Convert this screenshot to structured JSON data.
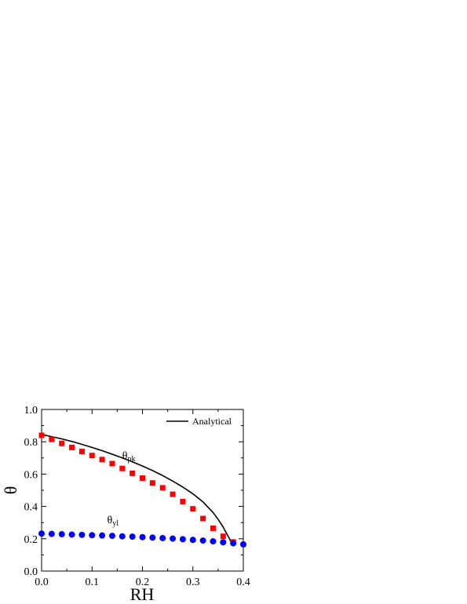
{
  "chart_data": {
    "type": "scatter",
    "xlabel": "RH",
    "ylabel": "θ",
    "xlim": [
      0.0,
      0.4
    ],
    "ylim": [
      0.0,
      1.0
    ],
    "x_ticks": [
      0.0,
      0.1,
      0.2,
      0.3,
      0.4
    ],
    "x_tick_labels": [
      "0.0",
      "0.1",
      "0.2",
      "0.3",
      "0.4"
    ],
    "y_ticks": [
      0.0,
      0.2,
      0.4,
      0.6,
      0.8,
      1.0
    ],
    "y_tick_labels": [
      "0.0",
      "0.2",
      "0.4",
      "0.6",
      "0.8",
      "1.0"
    ],
    "grid": false,
    "legend": {
      "placement": "top-right",
      "entries": [
        "Analytical"
      ]
    },
    "annotations": [
      {
        "base": "θ",
        "sub": "pk",
        "x": 0.16,
        "y": 0.695
      },
      {
        "base": "θ",
        "sub": "yl",
        "x": 0.13,
        "y": 0.295
      }
    ],
    "series": [
      {
        "name": "Analytical",
        "kind": "line",
        "color": "#000000",
        "x": [
          0.0,
          0.02,
          0.04,
          0.06,
          0.08,
          0.1,
          0.12,
          0.14,
          0.16,
          0.18,
          0.2,
          0.22,
          0.24,
          0.26,
          0.28,
          0.3,
          0.32,
          0.34,
          0.35,
          0.36,
          0.37,
          0.375,
          0.38
        ],
        "y": [
          0.845,
          0.832,
          0.818,
          0.802,
          0.784,
          0.765,
          0.745,
          0.723,
          0.7,
          0.676,
          0.65,
          0.622,
          0.591,
          0.557,
          0.52,
          0.478,
          0.428,
          0.362,
          0.32,
          0.272,
          0.215,
          0.185,
          0.165
        ]
      },
      {
        "kind": "scatter",
        "marker": "square",
        "color": "#ff0000",
        "x": [
          0.0,
          0.02,
          0.04,
          0.06,
          0.08,
          0.1,
          0.12,
          0.14,
          0.16,
          0.18,
          0.2,
          0.22,
          0.24,
          0.26,
          0.28,
          0.3,
          0.32,
          0.34,
          0.36,
          0.38
        ],
        "y": [
          0.84,
          0.815,
          0.79,
          0.765,
          0.74,
          0.715,
          0.69,
          0.665,
          0.635,
          0.605,
          0.575,
          0.545,
          0.515,
          0.475,
          0.43,
          0.385,
          0.325,
          0.265,
          0.215,
          0.18
        ]
      },
      {
        "kind": "scatter",
        "marker": "circle",
        "color": "#0000ff",
        "x": [
          0.0,
          0.02,
          0.04,
          0.06,
          0.08,
          0.1,
          0.12,
          0.14,
          0.16,
          0.18,
          0.2,
          0.22,
          0.24,
          0.26,
          0.28,
          0.3,
          0.32,
          0.34,
          0.36,
          0.38,
          0.4
        ],
        "y": [
          0.232,
          0.23,
          0.228,
          0.226,
          0.224,
          0.222,
          0.22,
          0.218,
          0.215,
          0.213,
          0.21,
          0.207,
          0.204,
          0.201,
          0.197,
          0.193,
          0.189,
          0.184,
          0.178,
          0.172,
          0.165
        ]
      }
    ]
  }
}
